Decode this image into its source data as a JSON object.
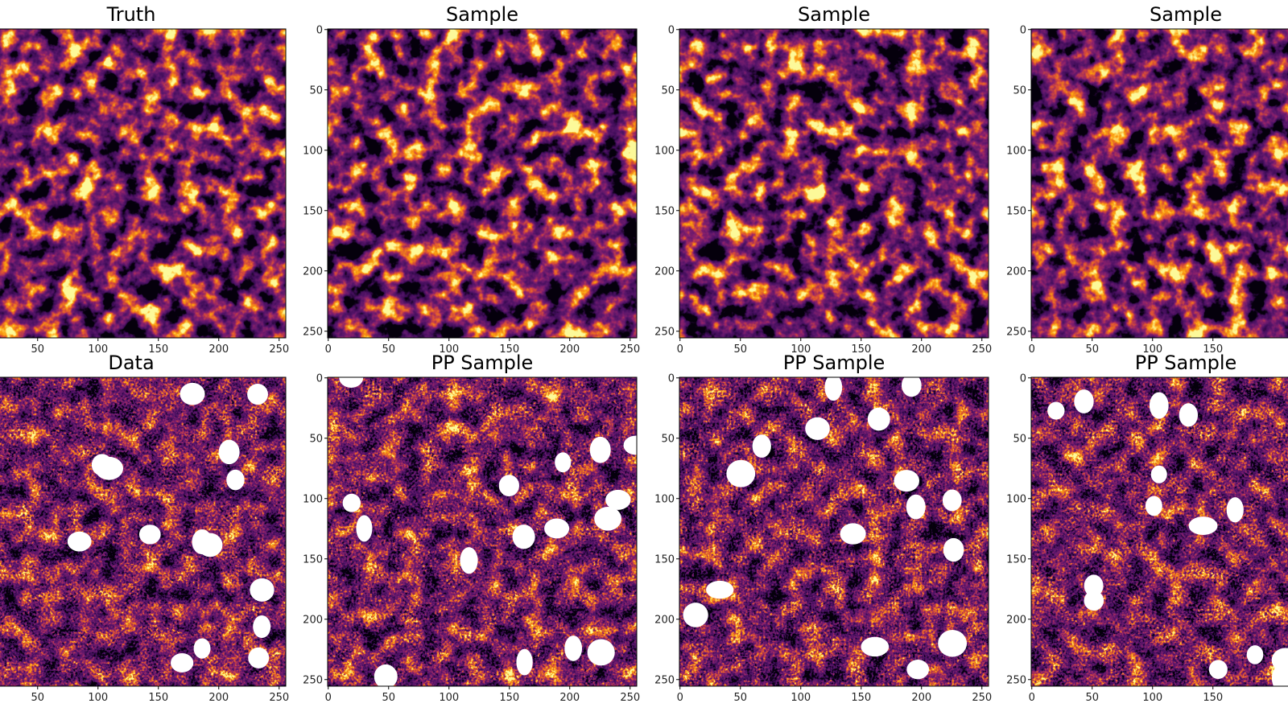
{
  "chart_data": [
    {
      "type": "image",
      "title": "Truth",
      "xlim": [
        -0.5,
        255.5
      ],
      "ylim": [
        255.5,
        -0.5
      ],
      "xticks": [
        50,
        100,
        150,
        200,
        250
      ],
      "masked": false
    },
    {
      "type": "image",
      "title": "Sample",
      "xlim": [
        -0.5,
        255.5
      ],
      "ylim": [
        255.5,
        -0.5
      ],
      "xticks": [
        0,
        50,
        100,
        150,
        200,
        250
      ],
      "yticks": [
        0,
        50,
        100,
        150,
        200,
        250
      ],
      "masked": false
    },
    {
      "type": "image",
      "title": "Sample",
      "xlim": [
        -0.5,
        255.5
      ],
      "ylim": [
        255.5,
        -0.5
      ],
      "xticks": [
        0,
        50,
        100,
        150,
        200,
        250
      ],
      "yticks": [
        0,
        50,
        100,
        150,
        200,
        250
      ],
      "masked": false
    },
    {
      "type": "image",
      "title": "Sample",
      "xlim": [
        -0.5,
        255.5
      ],
      "ylim": [
        255.5,
        -0.5
      ],
      "xticks": [
        0,
        50,
        100,
        150
      ],
      "yticks": [
        0,
        50,
        100,
        150,
        200,
        250
      ],
      "masked": false
    },
    {
      "type": "image",
      "title": "Data",
      "xlim": [
        -0.5,
        255.5
      ],
      "ylim": [
        255.5,
        -0.5
      ],
      "xticks": [
        50,
        100,
        150,
        200,
        250
      ],
      "masked": true
    },
    {
      "type": "image",
      "title": "PP Sample",
      "xlim": [
        -0.5,
        255.5
      ],
      "ylim": [
        255.5,
        -0.5
      ],
      "xticks": [
        0,
        50,
        100,
        150,
        200,
        250
      ],
      "yticks": [
        0,
        50,
        100,
        150,
        200,
        250
      ],
      "masked": true
    },
    {
      "type": "image",
      "title": "PP Sample",
      "xlim": [
        -0.5,
        255.5
      ],
      "ylim": [
        255.5,
        -0.5
      ],
      "xticks": [
        0,
        50,
        100,
        150,
        200,
        250
      ],
      "yticks": [
        0,
        50,
        100,
        150,
        200,
        250
      ],
      "masked": true
    },
    {
      "type": "image",
      "title": "PP Sample",
      "xlim": [
        -0.5,
        255.5
      ],
      "ylim": [
        255.5,
        -0.5
      ],
      "xticks": [
        0,
        50,
        100,
        150
      ],
      "yticks": [
        0,
        50,
        100,
        150,
        200,
        250
      ],
      "masked": true
    }
  ]
}
